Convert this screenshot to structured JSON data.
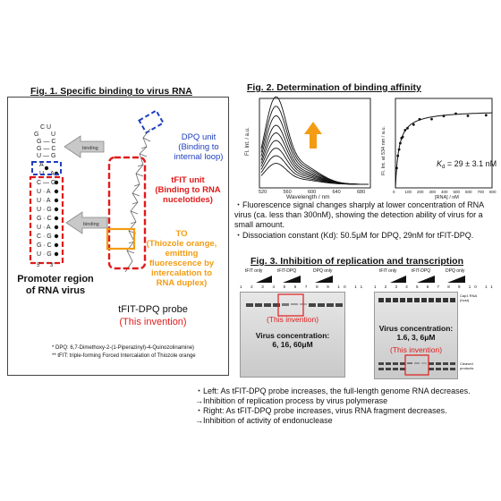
{
  "fig1": {
    "title": "Fig. 1. Specific binding to virus RNA",
    "dpq_unit": "DPQ unit\n(Binding to\ninternal loop)",
    "tfit_unit": "tFIT unit\n(Binding to RNA\nnucelotides)",
    "to_label": "TO\n(Thiozole orange,\nemitting\nfluorescence by\nintercalation to\nRNA duplex)",
    "binding_label_1": "binding",
    "binding_label_2": "binding",
    "promoter": "Promoter region\nof RNA virus",
    "probe": "tFIT-DPQ probe",
    "invention": "(This invention)",
    "footnote1": "*   DPQ: 6,7-Dimethoxy-2-(1-Piperazinyl)-4-Quinozolinamine)",
    "footnote2": "**  tFIT: triple-forming Forced Intercalation of Thiozole orange",
    "rna_label_5": "5'",
    "rna_label_3": "3'"
  },
  "fig2": {
    "title": "Fig. 2. Determination of binding affinity",
    "spectrum": {
      "ylabel": "Fl. Int. / a.u.",
      "xlabel": "Wavelength / nm",
      "xticks": [
        "520",
        "560",
        "600",
        "640",
        "680"
      ]
    },
    "binding_curve": {
      "ylabel": "Fl. Int. at 534 nm / a.u.",
      "xlabel": "[RNA] / nM",
      "xticks": [
        "0",
        "100",
        "200",
        "300",
        "400",
        "500",
        "600",
        "700",
        "800"
      ],
      "kd_label": "K",
      "kd_sub": "d",
      "kd_value": " = 29 ± 3.1 nM"
    },
    "bullet1": "・Fluorescence signal changes sharply at lower concentration of RNA virus (ca. less than 300nM), showing the detection ability of virus for a small amount.",
    "bullet2": "・Dissociation constant (Kd): 50.5μM for DPQ, 29nM for tFIT-DPQ."
  },
  "fig3": {
    "title": "Fig. 3. Inhibition of replication and transcription",
    "left_gel": {
      "headers": [
        "tFIT only",
        "tFIT-DPQ",
        "DPQ only"
      ],
      "lanes": "1 2 3 4 5 6 7 8 9 10 11",
      "invention": "(This invention)",
      "conc_label": "Virus concentration:",
      "conc_values": "6, 16, 60μM"
    },
    "right_gel": {
      "headers": [
        "tFIT only",
        "tFIT-DPQ",
        "DPQ only"
      ],
      "lanes": "1 2 3 4 5 6 7 8 9 10 11",
      "invention": "(This invention)",
      "conc_label": "Virus concentration:",
      "conc_values": "1.6, 3, 6μM",
      "cap_rna": "Cap1 RNA\n(host)",
      "cleaved": "Cleaved\nproducts"
    }
  },
  "bottom_text": [
    "・Left: As tFIT-DPQ probe increases, the full-length genome RNA decreases.",
    "→Inhibition of replication process by virus polymerase",
    "・Right: As tFIT-DPQ probe increases, virus RNA fragment decreases.",
    "→Inhibition of activity of endonuclease"
  ],
  "colors": {
    "red": "#e01b1b",
    "blue": "#1f3fbf",
    "orange": "#f39c12",
    "gray_arrow": "#c8c8c8"
  }
}
